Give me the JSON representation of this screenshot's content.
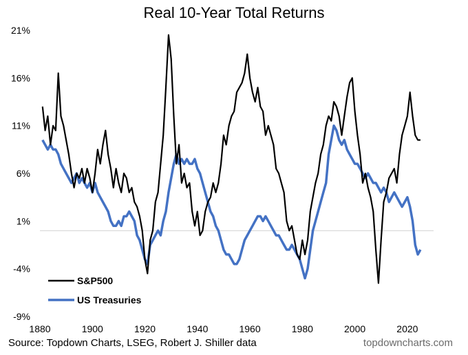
{
  "chart_data": {
    "type": "line",
    "title": "Real 10-Year Total Returns",
    "x_ticks": [
      1880,
      1900,
      1920,
      1940,
      1960,
      1980,
      2000,
      2020
    ],
    "y_ticks": [
      "21%",
      "16%",
      "11%",
      "6%",
      "1%",
      "-4%",
      "-9%"
    ],
    "y_tick_values": [
      21,
      16,
      11,
      6,
      1,
      -4,
      -9
    ],
    "xlim": [
      1880,
      2030
    ],
    "ylim": [
      -9,
      21
    ],
    "reference_line": 0,
    "legend_position": "bottom-left",
    "series": [
      {
        "name": "S&P500",
        "color": "#000000",
        "points": [
          [
            1881,
            13
          ],
          [
            1882,
            10.5
          ],
          [
            1883,
            12
          ],
          [
            1884,
            9
          ],
          [
            1885,
            11
          ],
          [
            1886,
            10.5
          ],
          [
            1887,
            16.5
          ],
          [
            1888,
            12
          ],
          [
            1889,
            11
          ],
          [
            1890,
            9.5
          ],
          [
            1891,
            8
          ],
          [
            1892,
            6
          ],
          [
            1893,
            4.5
          ],
          [
            1894,
            6
          ],
          [
            1895,
            5.5
          ],
          [
            1896,
            6.5
          ],
          [
            1897,
            5
          ],
          [
            1898,
            6.5
          ],
          [
            1899,
            5.5
          ],
          [
            1900,
            4
          ],
          [
            1901,
            6
          ],
          [
            1902,
            8.5
          ],
          [
            1903,
            7
          ],
          [
            1904,
            9
          ],
          [
            1905,
            10.5
          ],
          [
            1906,
            8
          ],
          [
            1907,
            6.5
          ],
          [
            1908,
            4.5
          ],
          [
            1909,
            6.5
          ],
          [
            1910,
            5
          ],
          [
            1911,
            4
          ],
          [
            1912,
            6
          ],
          [
            1913,
            5.5
          ],
          [
            1914,
            4
          ],
          [
            1915,
            4.5
          ],
          [
            1916,
            3
          ],
          [
            1917,
            2.5
          ],
          [
            1918,
            1.5
          ],
          [
            1919,
            0
          ],
          [
            1920,
            -3
          ],
          [
            1921,
            -4.5
          ],
          [
            1922,
            -1
          ],
          [
            1923,
            0
          ],
          [
            1924,
            3
          ],
          [
            1925,
            4
          ],
          [
            1926,
            7
          ],
          [
            1927,
            10
          ],
          [
            1928,
            15
          ],
          [
            1929,
            20.5
          ],
          [
            1930,
            18
          ],
          [
            1931,
            12
          ],
          [
            1932,
            7
          ],
          [
            1933,
            9
          ],
          [
            1934,
            5
          ],
          [
            1935,
            6
          ],
          [
            1936,
            4.5
          ],
          [
            1937,
            5
          ],
          [
            1938,
            2
          ],
          [
            1939,
            0.5
          ],
          [
            1940,
            2
          ],
          [
            1941,
            -0.5
          ],
          [
            1942,
            0
          ],
          [
            1943,
            2
          ],
          [
            1944,
            3
          ],
          [
            1945,
            3.5
          ],
          [
            1946,
            5
          ],
          [
            1947,
            4
          ],
          [
            1948,
            5
          ],
          [
            1949,
            7
          ],
          [
            1950,
            10
          ],
          [
            1951,
            9
          ],
          [
            1952,
            11
          ],
          [
            1953,
            12
          ],
          [
            1954,
            12.5
          ],
          [
            1955,
            14.5
          ],
          [
            1956,
            15
          ],
          [
            1957,
            15.5
          ],
          [
            1958,
            16.5
          ],
          [
            1959,
            18.5
          ],
          [
            1960,
            16
          ],
          [
            1961,
            14.5
          ],
          [
            1962,
            13.5
          ],
          [
            1963,
            15
          ],
          [
            1964,
            13
          ],
          [
            1965,
            12.5
          ],
          [
            1966,
            10
          ],
          [
            1967,
            11
          ],
          [
            1968,
            10
          ],
          [
            1969,
            9
          ],
          [
            1970,
            6.5
          ],
          [
            1971,
            6
          ],
          [
            1972,
            5
          ],
          [
            1973,
            4
          ],
          [
            1974,
            1
          ],
          [
            1975,
            0
          ],
          [
            1976,
            0.5
          ],
          [
            1977,
            -1
          ],
          [
            1978,
            -2.5
          ],
          [
            1979,
            -3
          ],
          [
            1980,
            -1
          ],
          [
            1981,
            -2.5
          ],
          [
            1982,
            -1
          ],
          [
            1983,
            2
          ],
          [
            1984,
            3.5
          ],
          [
            1985,
            5
          ],
          [
            1986,
            6
          ],
          [
            1987,
            8
          ],
          [
            1988,
            9
          ],
          [
            1989,
            11
          ],
          [
            1990,
            12
          ],
          [
            1991,
            11.5
          ],
          [
            1992,
            13.5
          ],
          [
            1993,
            13
          ],
          [
            1994,
            12
          ],
          [
            1995,
            10
          ],
          [
            1996,
            12
          ],
          [
            1997,
            14
          ],
          [
            1998,
            15.5
          ],
          [
            1999,
            16
          ],
          [
            2000,
            12.5
          ],
          [
            2001,
            10
          ],
          [
            2002,
            8
          ],
          [
            2003,
            5
          ],
          [
            2004,
            6
          ],
          [
            2005,
            4.5
          ],
          [
            2006,
            3.5
          ],
          [
            2007,
            2
          ],
          [
            2008,
            -2
          ],
          [
            2009,
            -5.5
          ],
          [
            2010,
            -1
          ],
          [
            2011,
            3
          ],
          [
            2012,
            4
          ],
          [
            2013,
            5.5
          ],
          [
            2014,
            6
          ],
          [
            2015,
            6.5
          ],
          [
            2016,
            5
          ],
          [
            2017,
            8
          ],
          [
            2018,
            10
          ],
          [
            2019,
            11
          ],
          [
            2020,
            12
          ],
          [
            2021,
            14.5
          ],
          [
            2022,
            12
          ],
          [
            2023,
            10
          ],
          [
            2024,
            9.5
          ],
          [
            2025,
            9.5
          ]
        ]
      },
      {
        "name": "US Treasuries",
        "color": "#4472c4",
        "points": [
          [
            1881,
            9.5
          ],
          [
            1882,
            9
          ],
          [
            1883,
            8.5
          ],
          [
            1884,
            9
          ],
          [
            1885,
            8.5
          ],
          [
            1886,
            8.5
          ],
          [
            1887,
            8
          ],
          [
            1888,
            7
          ],
          [
            1889,
            6.5
          ],
          [
            1890,
            6
          ],
          [
            1891,
            5.5
          ],
          [
            1892,
            5
          ],
          [
            1893,
            5.5
          ],
          [
            1894,
            6
          ],
          [
            1895,
            5
          ],
          [
            1896,
            5.5
          ],
          [
            1897,
            5
          ],
          [
            1898,
            4.5
          ],
          [
            1899,
            5
          ],
          [
            1900,
            4
          ],
          [
            1901,
            5
          ],
          [
            1902,
            4
          ],
          [
            1903,
            3.5
          ],
          [
            1904,
            3
          ],
          [
            1905,
            2.5
          ],
          [
            1906,
            2
          ],
          [
            1907,
            1
          ],
          [
            1908,
            0.5
          ],
          [
            1909,
            0.5
          ],
          [
            1910,
            1
          ],
          [
            1911,
            0.5
          ],
          [
            1912,
            1.5
          ],
          [
            1913,
            1.5
          ],
          [
            1914,
            2
          ],
          [
            1915,
            1.5
          ],
          [
            1916,
            1
          ],
          [
            1917,
            -0.5
          ],
          [
            1918,
            -1
          ],
          [
            1919,
            -2
          ],
          [
            1920,
            -3
          ],
          [
            1921,
            -3.5
          ],
          [
            1922,
            -1.5
          ],
          [
            1923,
            -1
          ],
          [
            1924,
            -0.5
          ],
          [
            1925,
            0
          ],
          [
            1926,
            -0.5
          ],
          [
            1927,
            1
          ],
          [
            1928,
            2
          ],
          [
            1929,
            4
          ],
          [
            1930,
            5.5
          ],
          [
            1931,
            7
          ],
          [
            1932,
            8
          ],
          [
            1933,
            7
          ],
          [
            1934,
            7.5
          ],
          [
            1935,
            7
          ],
          [
            1936,
            7.5
          ],
          [
            1937,
            7
          ],
          [
            1938,
            7
          ],
          [
            1939,
            7.5
          ],
          [
            1940,
            6.5
          ],
          [
            1941,
            6
          ],
          [
            1942,
            5
          ],
          [
            1943,
            4
          ],
          [
            1944,
            3
          ],
          [
            1945,
            2
          ],
          [
            1946,
            1.5
          ],
          [
            1947,
            0.5
          ],
          [
            1948,
            0
          ],
          [
            1949,
            -1
          ],
          [
            1950,
            -2
          ],
          [
            1951,
            -2.5
          ],
          [
            1952,
            -2.5
          ],
          [
            1953,
            -3
          ],
          [
            1954,
            -3.5
          ],
          [
            1955,
            -3.5
          ],
          [
            1956,
            -3
          ],
          [
            1957,
            -2
          ],
          [
            1958,
            -1
          ],
          [
            1959,
            -0.5
          ],
          [
            1960,
            0
          ],
          [
            1961,
            0.5
          ],
          [
            1962,
            1
          ],
          [
            1963,
            1.5
          ],
          [
            1964,
            1.5
          ],
          [
            1965,
            1
          ],
          [
            1966,
            1.5
          ],
          [
            1967,
            1
          ],
          [
            1968,
            0.5
          ],
          [
            1969,
            0
          ],
          [
            1970,
            -0.5
          ],
          [
            1971,
            -0.5
          ],
          [
            1972,
            -1
          ],
          [
            1973,
            -1.5
          ],
          [
            1974,
            -2
          ],
          [
            1975,
            -2
          ],
          [
            1976,
            -1.5
          ],
          [
            1977,
            -2
          ],
          [
            1978,
            -2.5
          ],
          [
            1979,
            -3
          ],
          [
            1980,
            -4
          ],
          [
            1981,
            -5
          ],
          [
            1982,
            -4
          ],
          [
            1983,
            -2
          ],
          [
            1984,
            0
          ],
          [
            1985,
            1
          ],
          [
            1986,
            2
          ],
          [
            1987,
            3
          ],
          [
            1988,
            4
          ],
          [
            1989,
            5
          ],
          [
            1990,
            8
          ],
          [
            1991,
            9.5
          ],
          [
            1992,
            11
          ],
          [
            1993,
            10.5
          ],
          [
            1994,
            9.5
          ],
          [
            1995,
            9
          ],
          [
            1996,
            9.5
          ],
          [
            1997,
            8.5
          ],
          [
            1998,
            8
          ],
          [
            1999,
            7.5
          ],
          [
            2000,
            7
          ],
          [
            2001,
            7
          ],
          [
            2002,
            6.5
          ],
          [
            2003,
            6
          ],
          [
            2004,
            5.5
          ],
          [
            2005,
            6
          ],
          [
            2006,
            5.5
          ],
          [
            2007,
            5
          ],
          [
            2008,
            5
          ],
          [
            2009,
            4.5
          ],
          [
            2010,
            4
          ],
          [
            2011,
            4.5
          ],
          [
            2012,
            4
          ],
          [
            2013,
            3
          ],
          [
            2014,
            3.5
          ],
          [
            2015,
            4
          ],
          [
            2016,
            3.5
          ],
          [
            2017,
            3
          ],
          [
            2018,
            2.5
          ],
          [
            2019,
            3
          ],
          [
            2020,
            3.5
          ],
          [
            2021,
            2.5
          ],
          [
            2022,
            1
          ],
          [
            2023,
            -1.5
          ],
          [
            2024,
            -2.5
          ],
          [
            2025,
            -2
          ]
        ]
      }
    ]
  },
  "footer": {
    "source": "Source: Topdown Charts, LSEG, Robert J. Shiller data",
    "brand": "topdowncharts.com"
  }
}
